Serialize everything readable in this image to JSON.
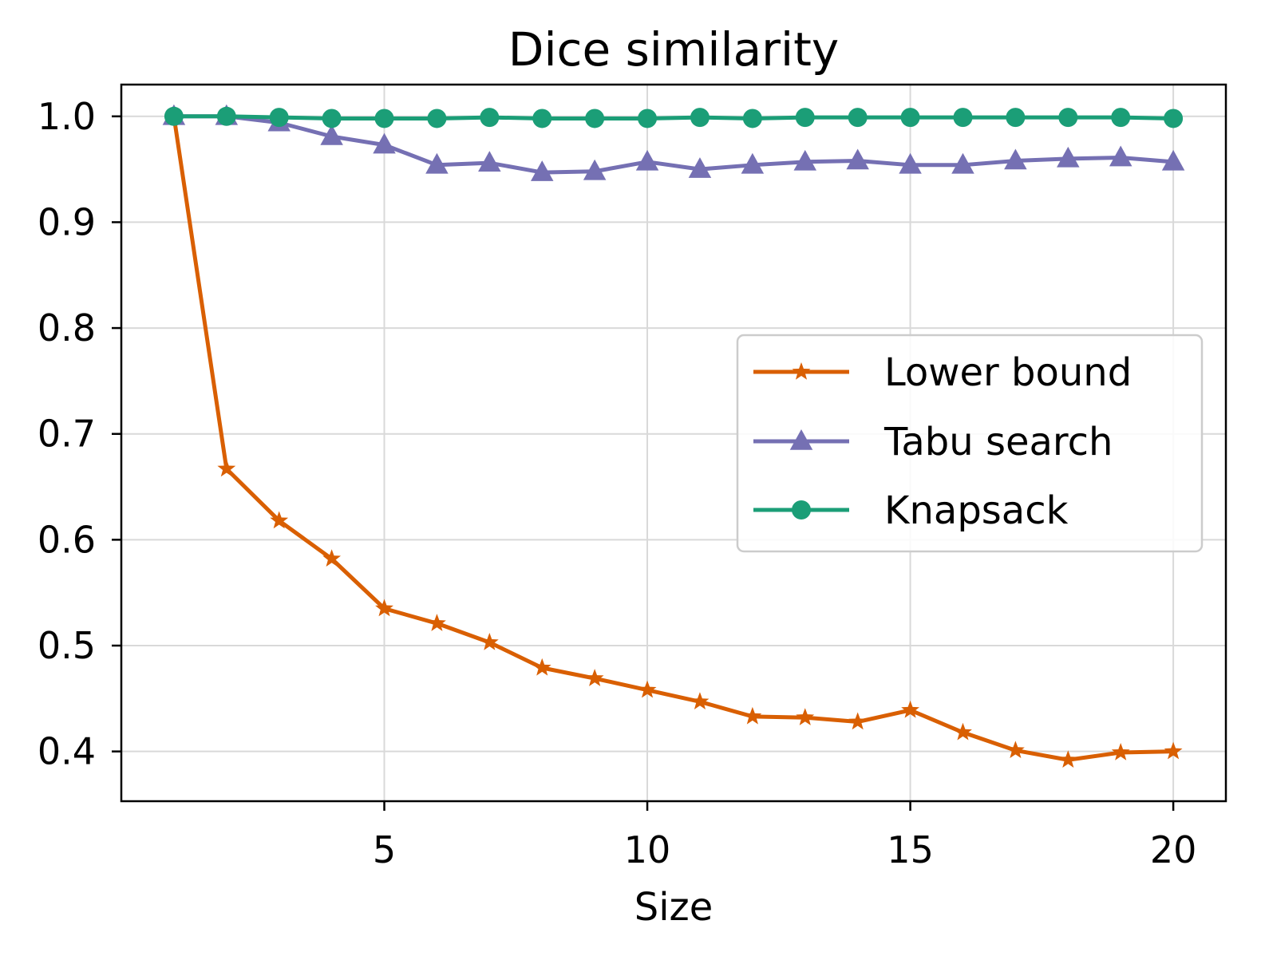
{
  "chart_data": {
    "type": "line",
    "title": "Dice similarity",
    "xlabel": "Size",
    "ylabel": "",
    "xlim": [
      0.0,
      21.0
    ],
    "ylim": [
      0.353,
      1.03
    ],
    "xticks": [
      5,
      10,
      15,
      20
    ],
    "xtick_labels": [
      "5",
      "10",
      "15",
      "20"
    ],
    "yticks": [
      0.4,
      0.5,
      0.6,
      0.7,
      0.8,
      0.9,
      1.0
    ],
    "ytick_labels": [
      "0.4",
      "0.5",
      "0.6",
      "0.7",
      "0.8",
      "0.9",
      "1.0"
    ],
    "grid": true,
    "legend_position": "center-right",
    "x": [
      1,
      2,
      3,
      4,
      5,
      6,
      7,
      8,
      9,
      10,
      11,
      12,
      13,
      14,
      15,
      16,
      17,
      18,
      19,
      20
    ],
    "series": [
      {
        "name": "Lower bound",
        "color": "#d95f02",
        "marker": "star",
        "values": [
          1.0,
          0.667,
          0.618,
          0.582,
          0.535,
          0.521,
          0.503,
          0.479,
          0.469,
          0.458,
          0.447,
          0.433,
          0.432,
          0.428,
          0.439,
          0.418,
          0.401,
          0.392,
          0.399,
          0.4
        ]
      },
      {
        "name": "Tabu search",
        "color": "#7570b3",
        "marker": "triangle",
        "values": [
          1.0,
          1.0,
          0.994,
          0.981,
          0.973,
          0.954,
          0.956,
          0.947,
          0.948,
          0.957,
          0.95,
          0.954,
          0.957,
          0.958,
          0.954,
          0.954,
          0.958,
          0.96,
          0.961,
          0.957
        ]
      },
      {
        "name": "Knapsack",
        "color": "#1b9e77",
        "marker": "circle",
        "values": [
          1.0,
          1.0,
          0.999,
          0.998,
          0.998,
          0.998,
          0.999,
          0.998,
          0.998,
          0.998,
          0.999,
          0.998,
          0.999,
          0.999,
          0.999,
          0.999,
          0.999,
          0.999,
          0.999,
          0.998
        ]
      }
    ]
  }
}
